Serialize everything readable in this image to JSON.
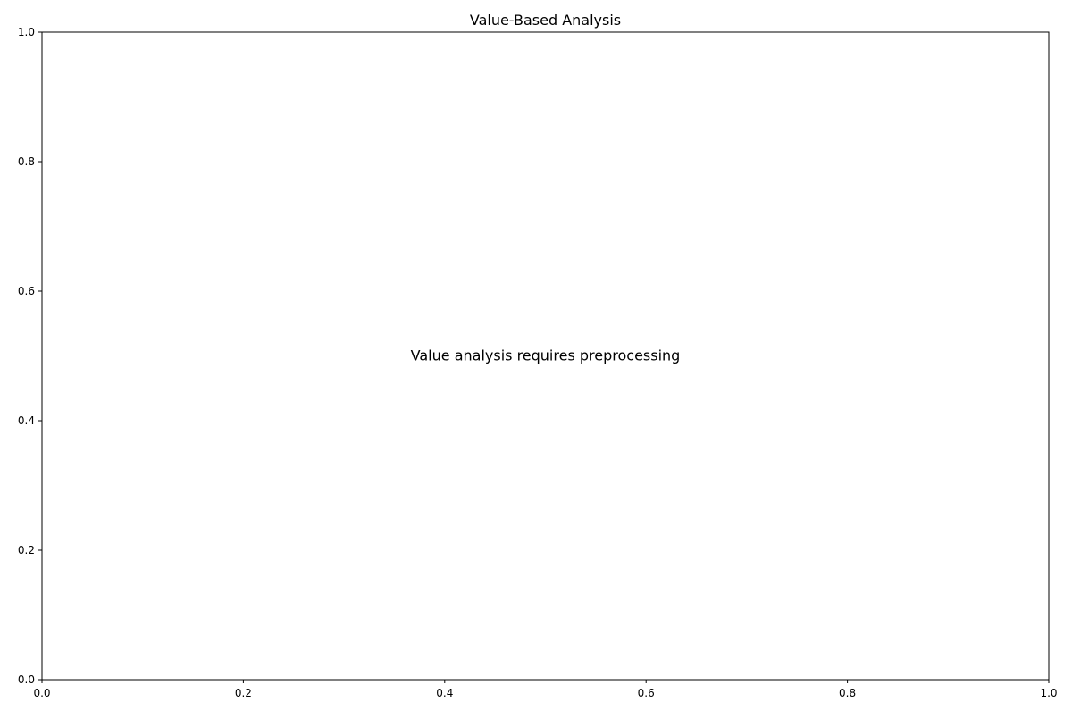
{
  "chart_data": {
    "type": "scatter",
    "title": "Value-Based Analysis",
    "xlabel": "",
    "ylabel": "",
    "xlim": [
      0.0,
      1.0
    ],
    "ylim": [
      0.0,
      1.0
    ],
    "x_ticks": [
      "0.0",
      "0.2",
      "0.4",
      "0.6",
      "0.8",
      "1.0"
    ],
    "y_ticks": [
      "0.0",
      "0.2",
      "0.4",
      "0.6",
      "0.8",
      "1.0"
    ],
    "grid": false,
    "series": [],
    "annotations": [
      {
        "text": "Value analysis requires preprocessing",
        "x": 0.5,
        "y": 0.5
      }
    ]
  }
}
